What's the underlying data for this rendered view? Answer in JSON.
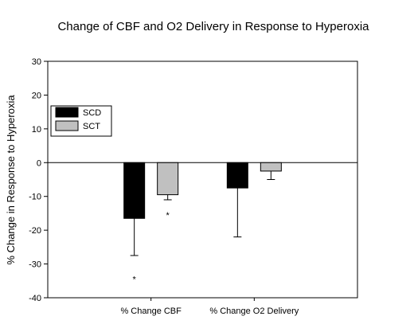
{
  "chart_data": {
    "type": "bar",
    "title": "Change of CBF and O2 Delivery in Response to Hyperoxia",
    "xlabel": "",
    "ylabel": "% Change in Response to Hyperoxia",
    "ylim": [
      -40,
      30
    ],
    "yticks": [
      30,
      20,
      10,
      0,
      -10,
      -20,
      -30,
      -40
    ],
    "categories": [
      "% Change CBF",
      "% Change O2 Delivery"
    ],
    "series": [
      {
        "name": "SCD",
        "color": "#000000",
        "values": [
          -16.5,
          -7.5
        ],
        "error_low": [
          -27.5,
          -22
        ]
      },
      {
        "name": "SCT",
        "color": "#c0c0c0",
        "values": [
          -9.5,
          -2.5
        ],
        "error_low": [
          -11,
          -5
        ]
      }
    ],
    "annotations": [
      {
        "category": 0,
        "series": 0,
        "text": "*",
        "y": -34
      },
      {
        "category": 0,
        "series": 1,
        "text": "*",
        "y": -15
      }
    ],
    "legend": {
      "placement": "upper-left"
    },
    "grid": false
  }
}
